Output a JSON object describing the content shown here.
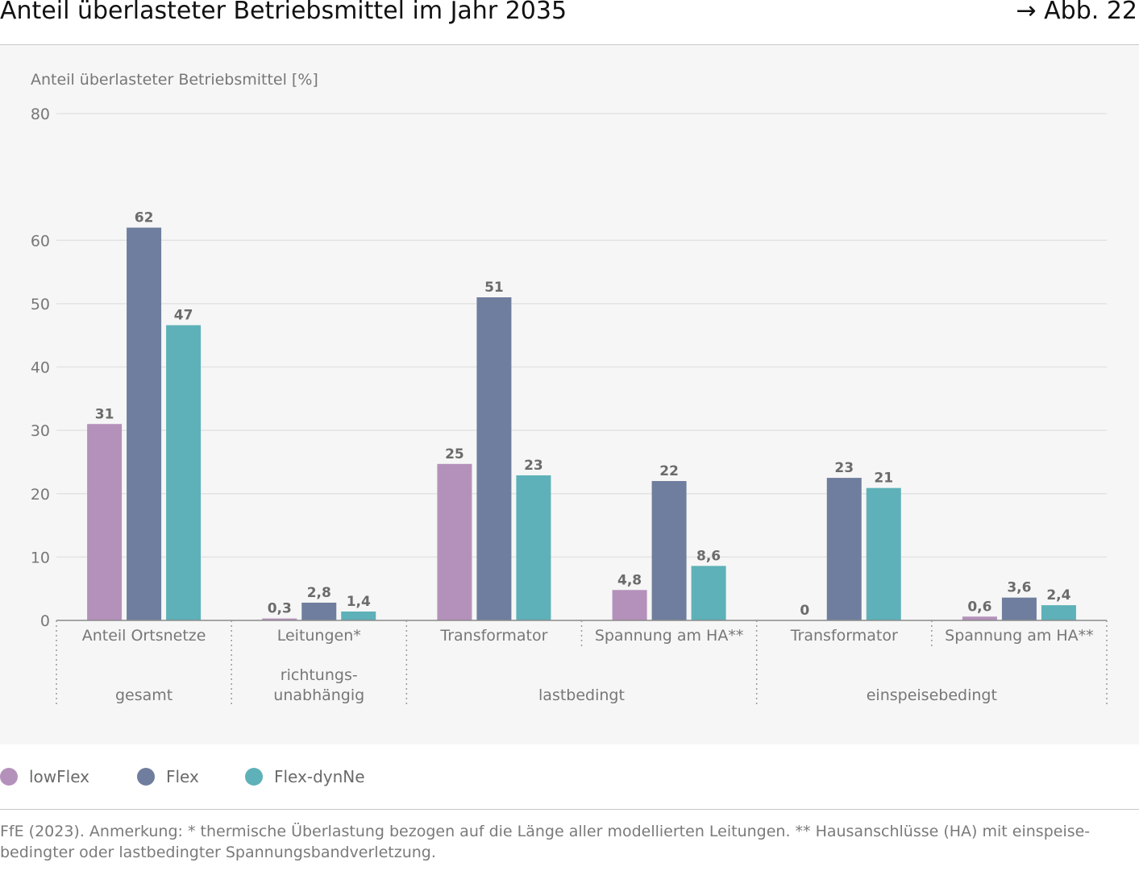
{
  "header": {
    "title": "Anteil überlasteter Betriebsmittel im Jahr 2035",
    "figure_ref": "→ Abb. 22"
  },
  "legend": [
    {
      "label": "lowFlex",
      "color": "#b491ba"
    },
    {
      "label": "Flex",
      "color": "#6f7e9e"
    },
    {
      "label": "Flex-dynNe",
      "color": "#5eb1b8"
    }
  ],
  "footer": {
    "source": "FfE (2023). Anmerkung: * thermische Überlastung bezogen auf die Länge aller modellierten Leitungen. ** Hausanschlüsse (HA) mit einspeise-bedingter oder lastbedingter Spannungsbandverletzung."
  },
  "chart_data": {
    "type": "bar",
    "ylabel": "Anteil überlasteter Betriebsmittel [%]",
    "ylim": [
      0,
      80
    ],
    "yticks": [
      0,
      10,
      20,
      30,
      40,
      50,
      60,
      80
    ],
    "grid": true,
    "legend_position": "bottom-left",
    "categories": [
      "Anteil Ortsnetze",
      "Leitungen*",
      "Transformator",
      "Spannung am HA**",
      "Transformator",
      "Spannung am HA**"
    ],
    "groups": [
      {
        "label": "gesamt",
        "categories": [
          0
        ]
      },
      {
        "label": "richtungs-\nunabhängig",
        "categories": [
          1
        ]
      },
      {
        "label": "lastbedingt",
        "categories": [
          2,
          3
        ]
      },
      {
        "label": "einspeisebedingt",
        "categories": [
          4,
          5
        ]
      }
    ],
    "series": [
      {
        "name": "lowFlex",
        "color": "#b491ba",
        "values": [
          31,
          0.3,
          24.7,
          4.8,
          0,
          0.6
        ],
        "labels": [
          "31",
          "0,3",
          "25",
          "4,8",
          "0",
          "0,6"
        ]
      },
      {
        "name": "Flex",
        "color": "#6f7e9e",
        "values": [
          62,
          2.8,
          51,
          22,
          22.5,
          3.6
        ],
        "labels": [
          "62",
          "2,8",
          "51",
          "22",
          "23",
          "3,6"
        ]
      },
      {
        "name": "Flex-dynNe",
        "color": "#5eb1b8",
        "values": [
          46.6,
          1.4,
          22.9,
          8.6,
          20.9,
          2.4
        ],
        "labels": [
          "47",
          "1,4",
          "23",
          "8,6",
          "21",
          "2,4"
        ]
      }
    ]
  }
}
